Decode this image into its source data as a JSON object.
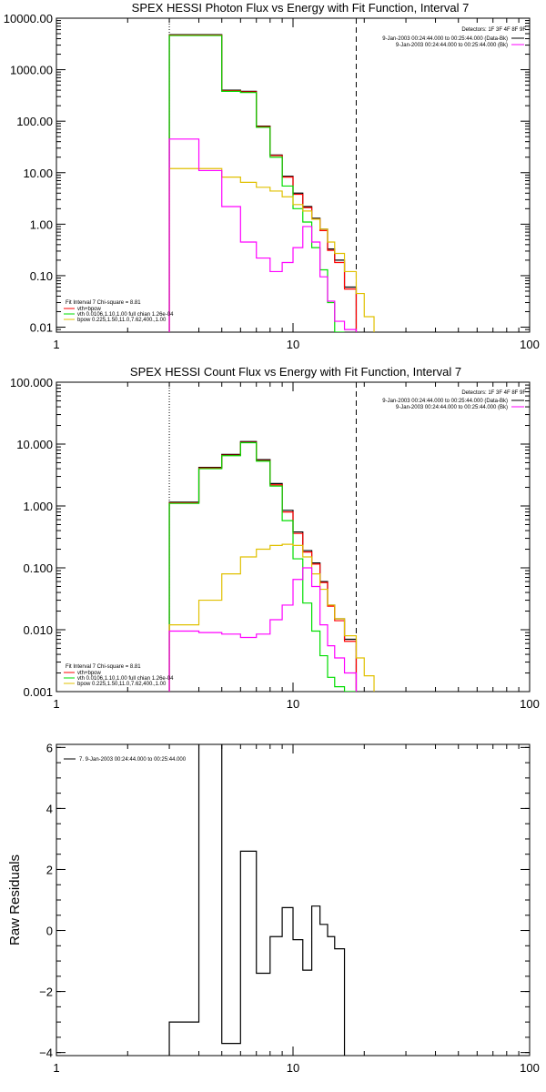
{
  "colors": {
    "total": "#000000",
    "vth_bpow": "#ff0000",
    "vth": "#00dd00",
    "bpow": "#e0c000",
    "background": "#ff00ff",
    "axes": "#000000"
  },
  "chart_data": [
    {
      "type": "line",
      "style": "histogram-step",
      "title": "SPEX HESSI Photon Flux vs Energy with Fit Function, Interval 7",
      "xscale": "log",
      "yscale": "log",
      "xlim": [
        1,
        100
      ],
      "ylim": [
        0.008,
        10000
      ],
      "xticks": [
        "1",
        "10",
        "100"
      ],
      "yticks": [
        {
          "value": 10000,
          "label": "10000.00"
        },
        {
          "value": 1000,
          "label": "1000.00"
        },
        {
          "value": 100,
          "label": "100.00"
        },
        {
          "value": 10,
          "label": "10.00"
        },
        {
          "value": 1,
          "label": "1.00"
        },
        {
          "value": 0.1,
          "label": "0.10"
        },
        {
          "value": 0.01,
          "label": "0.01"
        }
      ],
      "vlines": [
        {
          "x": 3.0,
          "style": "dotted"
        },
        {
          "x": 18.5,
          "style": "dashed"
        }
      ],
      "legend_top": {
        "header": "Detectors: 1F 3F 4F 8F 9F",
        "entries": [
          {
            "text": "9-Jan-2003 00:24:44.000 to 00:25:44.000 (Data-Bk)",
            "color": "total"
          },
          {
            "text": "9-Jan-2003 00:24:44.000 to 00:25:44.000 (Bk)",
            "color": "background"
          }
        ]
      },
      "legend_bottom": {
        "header": "Fit Interval 7   Chi-square = 8.81",
        "entries": [
          {
            "text": "vth+bpow",
            "color": "vth_bpow"
          },
          {
            "text": "vth 0.0106,1.10,1.00  full chian 1.26e-04",
            "color": "vth"
          },
          {
            "text": "bpow 0.225,1.50,11.0,7.62,400.,1.00",
            "color": "bpow"
          }
        ]
      },
      "edges": [
        3.0,
        4.0,
        5.0,
        6.0,
        7.0,
        8.0,
        9.0,
        10.0,
        11.0,
        12.0,
        13.0,
        14.0,
        15.0,
        16.5,
        18.5,
        20.0,
        22.0
      ],
      "series": [
        {
          "color": "total",
          "values": [
            4800,
            4800,
            400,
            380,
            80,
            22,
            8.5,
            4,
            2.2,
            1.3,
            0.8,
            0.33,
            0.2,
            0.06,
            null,
            null
          ]
        },
        {
          "color": "vth_bpow",
          "values": [
            4700,
            4700,
            390,
            370,
            78,
            21.5,
            8.2,
            3.8,
            2.1,
            1.25,
            0.75,
            0.31,
            0.18,
            0.055,
            null,
            null
          ]
        },
        {
          "color": "vth",
          "values": [
            4600,
            4600,
            380,
            360,
            76,
            20,
            5.5,
            2,
            1.1,
            0.35,
            0.13,
            0.03,
            0.008,
            null,
            null,
            null
          ]
        },
        {
          "color": "bpow",
          "values": [
            12,
            12,
            8.2,
            6.5,
            5.2,
            4.4,
            3.4,
            2.4,
            1.8,
            1.25,
            0.8,
            0.45,
            0.27,
            0.12,
            0.045,
            0.016
          ]
        },
        {
          "color": "background",
          "values": [
            45,
            11,
            2.2,
            0.45,
            0.22,
            0.12,
            0.18,
            0.35,
            0.9,
            0.45,
            0.095,
            0.032,
            0.013,
            0.009,
            null,
            null
          ]
        }
      ]
    },
    {
      "type": "line",
      "style": "histogram-step",
      "title": "SPEX HESSI Count Flux vs Energy with Fit Function, Interval 7",
      "xscale": "log",
      "yscale": "log",
      "xlim": [
        1,
        100
      ],
      "ylim": [
        0.001,
        100
      ],
      "xticks": [
        "1",
        "10",
        "100"
      ],
      "yticks": [
        {
          "value": 100,
          "label": "100.000"
        },
        {
          "value": 10,
          "label": "10.000"
        },
        {
          "value": 1,
          "label": "1.000"
        },
        {
          "value": 0.1,
          "label": "0.100"
        },
        {
          "value": 0.01,
          "label": "0.010"
        },
        {
          "value": 0.001,
          "label": "0.001"
        }
      ],
      "vlines": [
        {
          "x": 3.0,
          "style": "dotted"
        },
        {
          "x": 18.5,
          "style": "dashed"
        }
      ],
      "legend_top": {
        "header": "Detectors: 1F 3F 4F 8F 9F",
        "entries": [
          {
            "text": "9-Jan-2003 00:24:44.000 to 00:25:44.000 (Data-Bk)",
            "color": "total"
          },
          {
            "text": "9-Jan-2003 00:24:44.000 to 00:25:44.000 (Bk)",
            "color": "background"
          }
        ]
      },
      "legend_bottom": {
        "header": "Fit Interval 7   Chi-square = 8.81",
        "entries": [
          {
            "text": "vth+bpow",
            "color": "vth_bpow"
          },
          {
            "text": "vth 0.0106,1.10,1.00  full chian 1.26e-04",
            "color": "vth"
          },
          {
            "text": "bpow 0.225,1.50,11.0,7.62,400.,1.00",
            "color": "bpow"
          }
        ]
      },
      "edges": [
        3.0,
        4.0,
        5.0,
        6.0,
        7.0,
        8.0,
        9.0,
        10.0,
        11.0,
        12.0,
        13.0,
        14.0,
        15.0,
        16.5,
        18.5,
        20.0,
        22.0
      ],
      "series": [
        {
          "color": "total",
          "values": [
            1.15,
            4.2,
            6.8,
            11,
            5.6,
            2.3,
            0.85,
            0.38,
            0.19,
            0.12,
            0.06,
            0.025,
            0.015,
            0.007,
            null,
            null
          ]
        },
        {
          "color": "vth_bpow",
          "values": [
            1.12,
            4.1,
            6.6,
            10.6,
            5.4,
            2.2,
            0.8,
            0.36,
            0.18,
            0.115,
            0.058,
            0.024,
            0.014,
            0.0065,
            null,
            null
          ]
        },
        {
          "color": "vth",
          "values": [
            1.1,
            4.0,
            6.5,
            10.5,
            5.3,
            2.1,
            0.58,
            0.14,
            0.027,
            0.0095,
            0.0038,
            0.0017,
            0.0012,
            0.001,
            null,
            null
          ]
        },
        {
          "color": "bpow",
          "values": [
            0.012,
            0.03,
            0.08,
            0.15,
            0.2,
            0.23,
            0.24,
            0.23,
            0.15,
            0.08,
            0.045,
            0.025,
            0.015,
            0.008,
            0.0035,
            0.0018
          ]
        },
        {
          "color": "background",
          "values": [
            0.0095,
            0.009,
            0.0085,
            0.0075,
            0.0085,
            0.0145,
            0.025,
            0.065,
            0.1,
            0.05,
            0.012,
            0.0055,
            0.0035,
            0.002,
            null,
            null
          ]
        }
      ]
    },
    {
      "type": "line",
      "style": "histogram-step",
      "title": "",
      "ylabel": "Raw Residuals",
      "xscale": "log",
      "yscale": "linear",
      "xlim": [
        1,
        100
      ],
      "ylim": [
        -4.1,
        6.1
      ],
      "xticks": [
        "1",
        "10",
        "100"
      ],
      "yticks": [
        {
          "value": 6,
          "label": "6"
        },
        {
          "value": 4,
          "label": "4"
        },
        {
          "value": 2,
          "label": "2"
        },
        {
          "value": 0,
          "label": "0"
        },
        {
          "value": -2,
          "label": "−2"
        },
        {
          "value": -4,
          "label": "−4"
        }
      ],
      "legend_top": {
        "header": "",
        "entries": [
          {
            "text": "7. 9-Jan-2003 00:24:44.000 to 00:25:44.000",
            "color": "total"
          }
        ]
      },
      "edges": [
        3.0,
        4.0,
        5.0,
        6.0,
        7.0,
        8.0,
        9.0,
        10.0,
        11.0,
        12.0,
        13.0,
        14.0,
        15.0,
        16.5,
        18.5
      ],
      "series": [
        {
          "color": "total",
          "values": [
            -3.0,
            6.5,
            -3.7,
            2.6,
            -1.4,
            -0.2,
            0.75,
            -0.3,
            -1.3,
            0.8,
            0.2,
            -0.2,
            -0.6,
            null
          ]
        }
      ]
    }
  ]
}
